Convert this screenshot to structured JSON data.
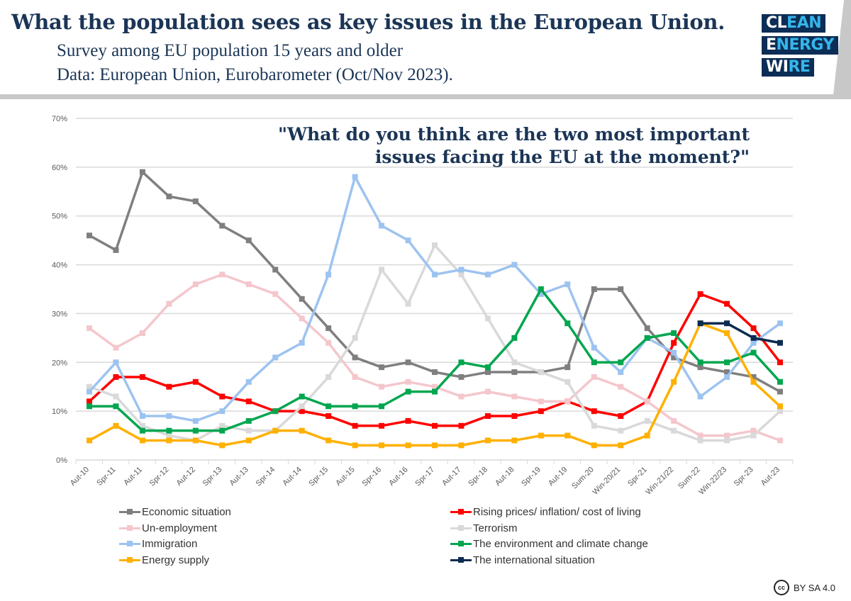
{
  "header": {
    "title": "What the population sees as key issues in the European Union.",
    "subtitle1": "Survey among EU population 15 years and older",
    "subtitle2": "Data: European Union, Eurobarometer (Oct/Nov 2023).",
    "logo": [
      "CLEAN",
      "ENERGY",
      "WIRE"
    ]
  },
  "license": "BY SA 4.0",
  "chart_data": {
    "type": "line",
    "title": "\"What do you think are the two most important issues facing the EU at the moment?\"",
    "title_lines": [
      "\"What do you think are the two most important",
      "issues facing the EU at the moment?\""
    ],
    "ylim": [
      0,
      70
    ],
    "yticks": [
      "0%",
      "10%",
      "20%",
      "30%",
      "40%",
      "50%",
      "60%",
      "70%"
    ],
    "grid": true,
    "legend": "bottom",
    "categories": [
      "Aut-10",
      "Spr-11",
      "Aut-11",
      "Spr-12",
      "Aut-12",
      "Spr-13",
      "Aut-13",
      "Spr-14",
      "Aut-14",
      "Spr-15",
      "Aut-15",
      "Spr-16",
      "Aut-16",
      "Spr-17",
      "Aut-17",
      "Spr-18",
      "Aut-18",
      "Spr-19",
      "Aut-19",
      "Sum-20",
      "Win-20/21",
      "Spr-21",
      "Win-21/22",
      "Sum-22",
      "Win-22/23",
      "Spr-23",
      "Aut-23"
    ],
    "series": [
      {
        "name": "Economic situation",
        "color": "#7f7f7f",
        "values": [
          46,
          43,
          59,
          54,
          53,
          48,
          45,
          39,
          33,
          27,
          21,
          19,
          20,
          18,
          17,
          18,
          18,
          18,
          19,
          35,
          35,
          27,
          21,
          19,
          18,
          17,
          14
        ]
      },
      {
        "name": "Rising prices/ inflation/ cost of living",
        "color": "#ff0000",
        "values": [
          12,
          17,
          17,
          15,
          16,
          13,
          12,
          10,
          10,
          9,
          7,
          7,
          8,
          7,
          7,
          9,
          9,
          10,
          12,
          10,
          9,
          12,
          24,
          34,
          32,
          27,
          20
        ]
      },
      {
        "name": "Un-employment",
        "color": "#f4c7cd",
        "values": [
          27,
          23,
          26,
          32,
          36,
          38,
          36,
          34,
          29,
          24,
          17,
          15,
          16,
          15,
          13,
          14,
          13,
          12,
          12,
          17,
          15,
          12,
          8,
          5,
          5,
          6,
          4
        ]
      },
      {
        "name": "Terrorism",
        "color": "#d9d9d9",
        "values": [
          15,
          13,
          7,
          5,
          4,
          7,
          6,
          6,
          11,
          17,
          25,
          39,
          32,
          44,
          38,
          29,
          20,
          18,
          16,
          7,
          6,
          8,
          6,
          4,
          4,
          5,
          10
        ]
      },
      {
        "name": "Immigration",
        "color": "#9dc3f0",
        "values": [
          14,
          20,
          9,
          9,
          8,
          10,
          16,
          21,
          24,
          38,
          58,
          48,
          45,
          38,
          39,
          38,
          40,
          34,
          36,
          23,
          18,
          25,
          22,
          13,
          17,
          24,
          28
        ]
      },
      {
        "name": "The environment and climate change",
        "color": "#00a64f",
        "values": [
          11,
          11,
          6,
          6,
          6,
          6,
          8,
          10,
          13,
          11,
          11,
          11,
          14,
          14,
          20,
          19,
          25,
          35,
          28,
          20,
          20,
          25,
          26,
          20,
          20,
          22,
          16
        ]
      },
      {
        "name": "Energy supply",
        "color": "#ffb000",
        "values": [
          4,
          7,
          4,
          4,
          4,
          3,
          4,
          6,
          6,
          4,
          3,
          3,
          3,
          3,
          3,
          4,
          4,
          5,
          5,
          3,
          3,
          5,
          16,
          28,
          26,
          16,
          11
        ]
      },
      {
        "name": "The international situation",
        "color": "#0d2b50",
        "values": [
          null,
          null,
          null,
          null,
          null,
          null,
          null,
          null,
          null,
          null,
          null,
          null,
          null,
          null,
          null,
          null,
          null,
          null,
          null,
          null,
          null,
          null,
          null,
          28,
          28,
          25,
          24
        ]
      }
    ]
  }
}
